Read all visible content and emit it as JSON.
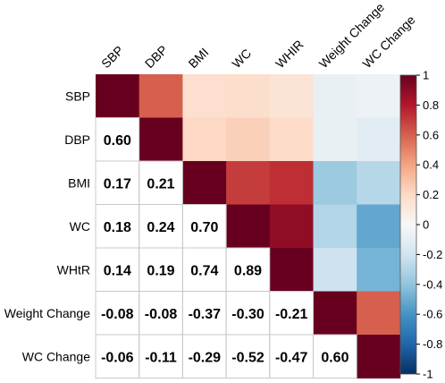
{
  "chart_data": {
    "type": "heatmap",
    "variables_row": [
      "SBP",
      "DBP",
      "BMI",
      "WC",
      "WHtR",
      "Weight Change",
      "WC Change"
    ],
    "variables_col": [
      "SBP",
      "DBP",
      "BMI",
      "WC",
      "WHIR",
      "Weight Change",
      "WC Change"
    ],
    "matrix": [
      [
        1.0,
        0.6,
        0.17,
        0.18,
        0.14,
        -0.08,
        -0.06
      ],
      [
        0.6,
        1.0,
        0.21,
        0.24,
        0.19,
        -0.08,
        -0.11
      ],
      [
        0.17,
        0.21,
        1.0,
        0.7,
        0.74,
        -0.37,
        -0.29
      ],
      [
        0.18,
        0.24,
        0.7,
        1.0,
        0.89,
        -0.3,
        -0.52
      ],
      [
        0.14,
        0.19,
        0.74,
        0.89,
        1.0,
        -0.21,
        -0.47
      ],
      [
        -0.08,
        -0.08,
        -0.37,
        -0.3,
        -0.21,
        1.0,
        0.6
      ],
      [
        -0.06,
        -0.11,
        -0.29,
        -0.52,
        -0.47,
        0.6,
        1.0
      ]
    ],
    "lower_triangle_labels": [
      [
        "0.60"
      ],
      [
        "0.17",
        "0.21"
      ],
      [
        "0.18",
        "0.24",
        "0.70"
      ],
      [
        "0.14",
        "0.19",
        "0.74",
        "0.89"
      ],
      [
        "-0.08",
        "-0.08",
        "-0.37",
        "-0.30",
        "-0.21"
      ],
      [
        "-0.06",
        "-0.11",
        "-0.29",
        "-0.52",
        "-0.47",
        "0.60"
      ]
    ],
    "colorbar": {
      "range": [
        -1,
        1
      ],
      "ticks": [
        "1",
        "0.8",
        "0.6",
        "0.4",
        "0.2",
        "0",
        "-0.2",
        "-0.4",
        "-0.6",
        "-0.8",
        "-1"
      ]
    },
    "colors": {
      "negative_end": "#053061",
      "neutral": "#f7f7f7",
      "positive_end": "#67001f",
      "grid": "#c8c8c8",
      "text": "#000000"
    }
  }
}
